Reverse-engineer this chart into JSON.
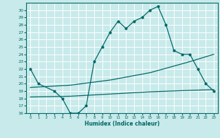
{
  "xlabel": "Humidex (Indice chaleur)",
  "bg_color": "#c8eaea",
  "grid_color": "#ffffff",
  "line_color": "#006666",
  "xlim": [
    -0.5,
    23.5
  ],
  "ylim": [
    16,
    31
  ],
  "xticks": [
    0,
    1,
    2,
    3,
    4,
    5,
    6,
    7,
    8,
    9,
    10,
    11,
    12,
    13,
    14,
    15,
    16,
    17,
    18,
    19,
    20,
    21,
    22,
    23
  ],
  "yticks": [
    16,
    17,
    18,
    19,
    20,
    21,
    22,
    23,
    24,
    25,
    26,
    27,
    28,
    29,
    30
  ],
  "line1_x": [
    0,
    1,
    3,
    4,
    5,
    6,
    7,
    8,
    9,
    10,
    11,
    12,
    13,
    14,
    15,
    16,
    17,
    18,
    19,
    20,
    21,
    22,
    23
  ],
  "line1_y": [
    22,
    20,
    19,
    18,
    16,
    16,
    17,
    23,
    25,
    27,
    28.5,
    27.5,
    28.5,
    29,
    30,
    30.5,
    28,
    24.5,
    24,
    24,
    22,
    20,
    19
  ],
  "line2_x": [
    0,
    5,
    10,
    15,
    20,
    23
  ],
  "line2_y": [
    19.5,
    19.8,
    20.5,
    21.5,
    23.0,
    24.0
  ],
  "line3_x": [
    0,
    5,
    10,
    15,
    20,
    23
  ],
  "line3_y": [
    18.2,
    18.3,
    18.6,
    18.9,
    19.1,
    19.2
  ]
}
